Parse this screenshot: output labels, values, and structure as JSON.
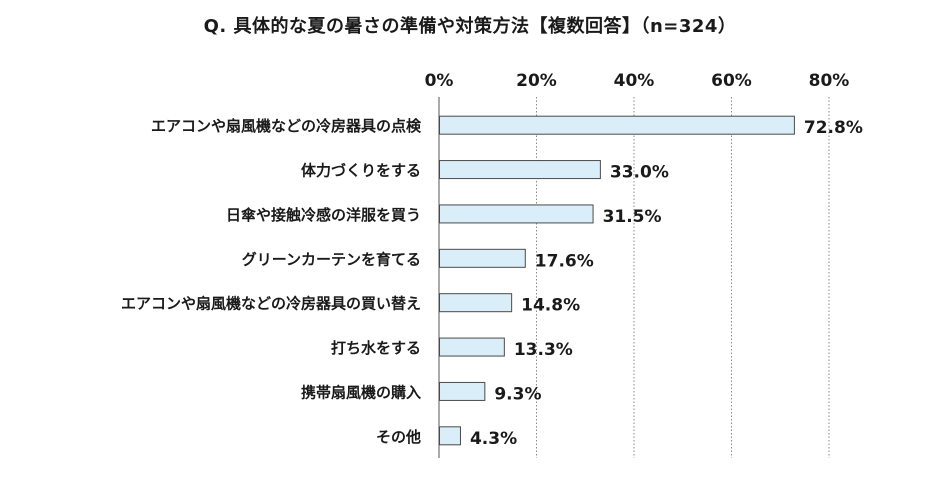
{
  "chart_data": {
    "type": "bar",
    "orientation": "horizontal",
    "title": "Q. 具体的な夏の暑さの準備や対策方法【複数回答】（n=324）",
    "xlabel": "",
    "ylabel": "",
    "xlim": [
      0,
      80
    ],
    "ticks": [
      "0%",
      "20%",
      "40%",
      "60%",
      "80%"
    ],
    "tick_values": [
      0,
      20,
      40,
      60,
      80
    ],
    "grid": true,
    "legend": "none",
    "categories": [
      "エアコンや扇風機などの冷房器具の点検",
      "体力づくりをする",
      "日傘や接触冷感の洋服を買う",
      "グリーンカーテンを育てる",
      "エアコンや扇風機などの冷房器具の買い替え",
      "打ち水をする",
      "携帯扇風機の購入",
      "その他"
    ],
    "values": [
      72.8,
      33.0,
      31.5,
      17.6,
      14.8,
      13.3,
      9.3,
      4.3
    ],
    "value_labels": [
      "72.8%",
      "33.0%",
      "31.5%",
      "17.6%",
      "14.8%",
      "13.3%",
      "9.3%",
      "4.3%"
    ],
    "colors": {
      "bar_fill": "#d9eef9",
      "bar_stroke": "#4a4a4a",
      "grid": "#8a8a8a",
      "axis": "#555555",
      "text": "#1a1a1a"
    }
  }
}
